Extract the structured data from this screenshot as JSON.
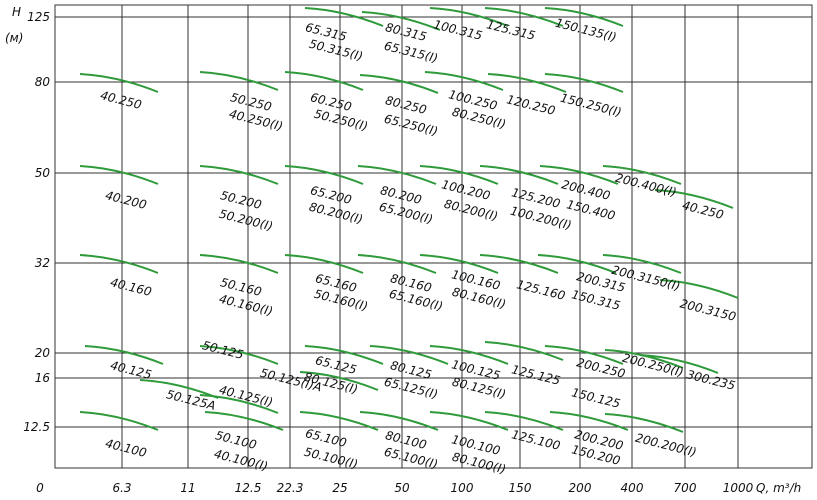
{
  "y_axis": {
    "title": "H",
    "unit": "(м)",
    "ticks": [
      "125",
      "80",
      "50",
      "32",
      "20",
      "16",
      "12.5"
    ]
  },
  "x_axis": {
    "title": "Q, m³/h",
    "ticks": [
      "0",
      "6.3",
      "11",
      "12.5",
      "22.3",
      "25",
      "50",
      "100",
      "150",
      "200",
      "400",
      "700",
      "1000"
    ]
  },
  "pumps": [
    "65.315",
    "50.315(I)",
    "80.315",
    "65.315(I)",
    "100.315",
    "125.315",
    "150.135(I)",
    "40.250",
    "50.250",
    "40.250(I)",
    "60.250",
    "50.250(I)",
    "80.250",
    "65.250(I)",
    "100.250",
    "80.250(I)",
    "120.250",
    "150.250(I)",
    "40.200",
    "50.200",
    "50.200(I)",
    "65.200",
    "80.200(I)",
    "80.200",
    "65.200(I)",
    "100.200",
    "80.200(I)",
    "125.200",
    "100.200(I)",
    "200.400",
    "150.400",
    "200.400(I)",
    "40.250",
    "40.160",
    "50.160",
    "40.160(I)",
    "65.160",
    "50.160(I)",
    "80.160",
    "65.160(I)",
    "100.160",
    "80.160(I)",
    "125.160",
    "200.315",
    "150.315",
    "200.3150(I)",
    "200.3150",
    "50.125",
    "40.125",
    "50.125A",
    "40.125(I)",
    "50.125(I)A",
    "65.125",
    "80.125(I)",
    "80.125",
    "65.125(I)",
    "100.125",
    "80.125(I)",
    "125.125",
    "200.250",
    "150.125",
    "200.250(I)",
    "300.235",
    "40.100",
    "50.100",
    "40.100(I)",
    "65.100",
    "50.100(I)",
    "80.100",
    "65.100(I)",
    "100.100",
    "80.100(I)",
    "125.100",
    "200.200",
    "150.200",
    "200.200(I)"
  ]
}
